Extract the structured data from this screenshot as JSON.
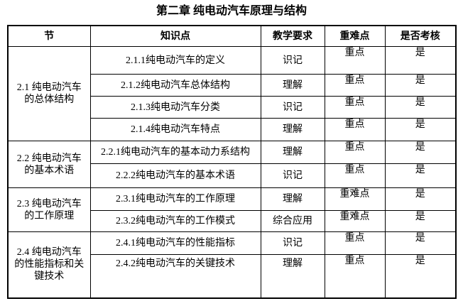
{
  "title": "第二章 纯电动汽车原理与结构",
  "table": {
    "headers": [
      "节",
      "知识点",
      "教学要求",
      "重难点",
      "是否考核"
    ],
    "sections": [
      {
        "label": "2.1 纯电动汽车\n的总体结构",
        "rows": [
          {
            "point": "2.1.1纯电动汽车的定义",
            "requirement": "识记",
            "emphasis": "重点",
            "assessed": "是"
          },
          {
            "point": "2.1.2纯电动汽车总体结构",
            "requirement": "理解",
            "emphasis": "重点",
            "assessed": "是"
          },
          {
            "point": "2.1.3纯电动汽车分类",
            "requirement": "识记",
            "emphasis": "重点",
            "assessed": "是"
          },
          {
            "point": "2.1.4纯电动汽车特点",
            "requirement": "理解",
            "emphasis": "重点",
            "assessed": "是"
          }
        ]
      },
      {
        "label": "2.2 纯电动汽车\n的基本术语",
        "rows": [
          {
            "point": "2.2.1纯电动汽车的基本动力系结构",
            "requirement": "理解",
            "emphasis": "重点",
            "assessed": "是"
          },
          {
            "point": "2.2.2纯电动汽车的基本术语",
            "requirement": "识记",
            "emphasis": "重点",
            "assessed": "是"
          }
        ]
      },
      {
        "label": "2.3 纯电动汽车\n的工作原理",
        "rows": [
          {
            "point": "2.3.1纯电动汽车的工作原理",
            "requirement": "理解",
            "emphasis": "重难点",
            "assessed": "是"
          },
          {
            "point": "2.3.2纯电动汽车的工作模式",
            "requirement": "综合应用",
            "emphasis": "重难点",
            "assessed": "是"
          }
        ]
      },
      {
        "label": "2.4 纯电动汽车\n的性能指标和关\n键技术",
        "rows": [
          {
            "point": "2.4.1纯电动汽车的性能指标",
            "requirement": "识记",
            "emphasis": "重点",
            "assessed": "是"
          },
          {
            "point": "2.4.2纯电动汽车的关键技术",
            "requirement": "理解",
            "emphasis": "重点",
            "assessed": "是"
          }
        ]
      }
    ]
  }
}
